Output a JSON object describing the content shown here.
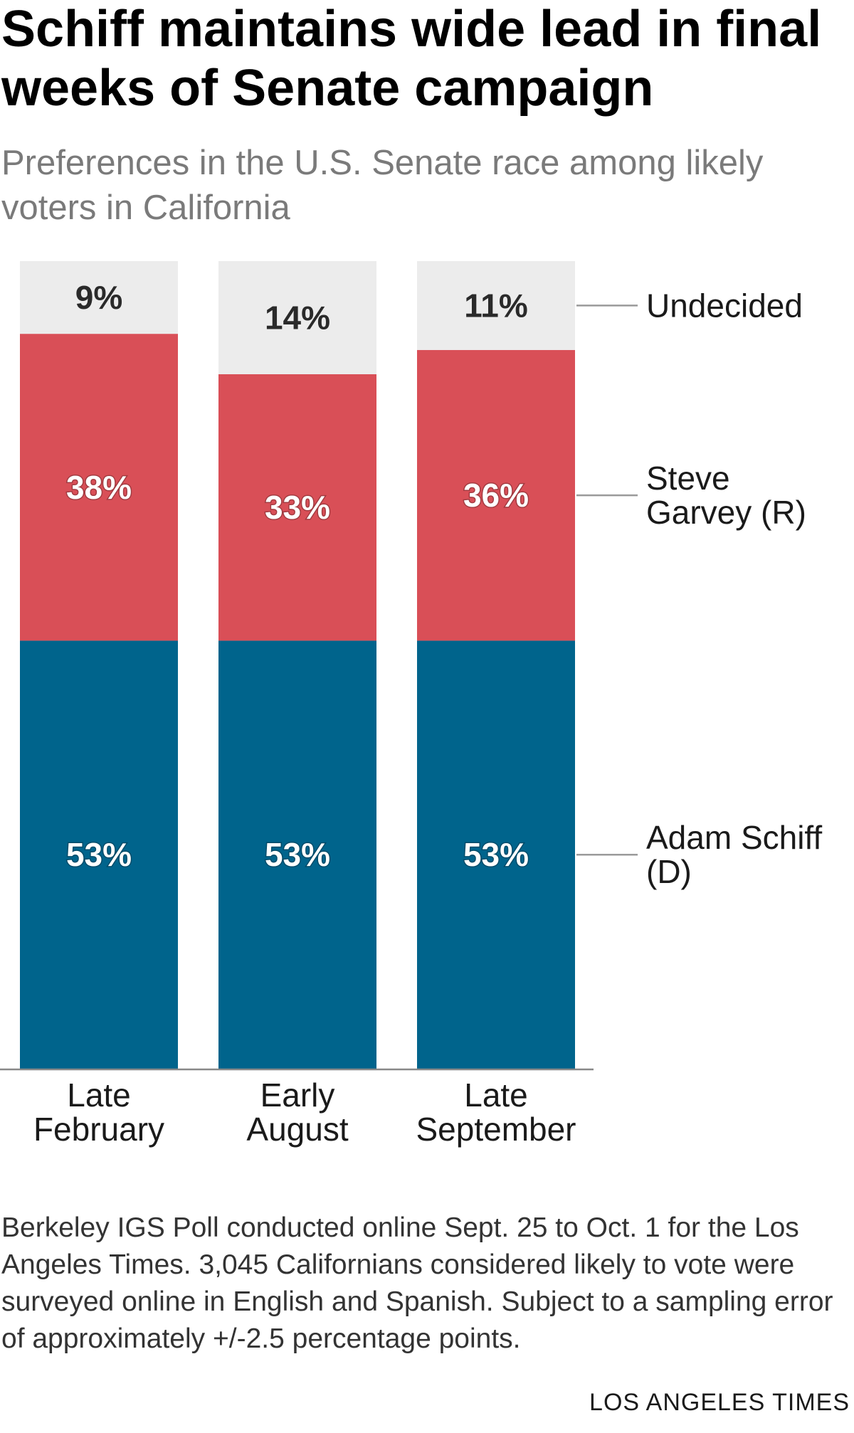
{
  "header": {
    "title": "Schiff maintains wide lead in final weeks of Senate campaign",
    "subtitle": "Preferences in the U.S. Senate race among likely voters in California"
  },
  "chart_data": {
    "type": "bar",
    "stacked": true,
    "categories": [
      "Late February",
      "Early August",
      "Late September"
    ],
    "category_lines": [
      [
        "Late",
        "February"
      ],
      [
        "Early",
        "August"
      ],
      [
        "Late",
        "September"
      ]
    ],
    "series": [
      {
        "name": "Adam Schiff (D)",
        "label_lines": [
          "Adam Schiff",
          "(D)"
        ],
        "values": [
          53,
          53,
          53
        ],
        "color": "#00648c",
        "label_color": "#ffffff"
      },
      {
        "name": "Steve Garvey (R)",
        "label_lines": [
          "Steve",
          "Garvey (R)"
        ],
        "values": [
          38,
          33,
          36
        ],
        "color": "#d94f57",
        "label_color": "#ffffff"
      },
      {
        "name": "Undecided",
        "label_lines": [
          "Undecided"
        ],
        "values": [
          9,
          14,
          11
        ],
        "color": "#ececec",
        "label_color": "#2a2a2a"
      }
    ],
    "value_suffix": "%",
    "ylim": [
      0,
      100
    ],
    "grid": false,
    "legend": "right, labels aligned to last bar"
  },
  "footer": {
    "source_note": "Berkeley IGS Poll conducted online Sept. 25 to Oct. 1 for the Los Angeles Times. 3,045 Californians considered likely to vote were surveyed online in English and Spanish. Subject to a sampling error of approximately +/-2.5 percentage points.",
    "credit": "LOS ANGELES TIMES"
  }
}
